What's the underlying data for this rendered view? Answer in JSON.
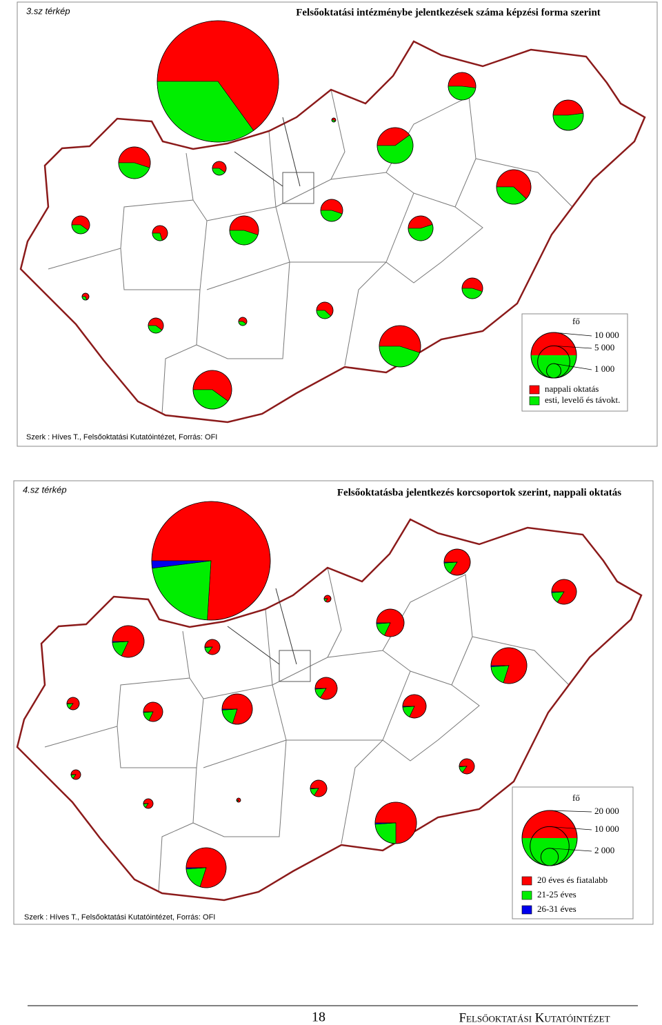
{
  "maps": [
    {
      "label": "3.sz térkép",
      "title": "Felsőoktatási intézménybe jelentkezések száma képzési forma szerint",
      "credit": "Szerk : Híves T., Felsőoktatási Kutatóintézet,  Forrás: OFI",
      "legend": {
        "unit": "fő",
        "sizes": [
          {
            "value": 10000,
            "label": "10 000"
          },
          {
            "value": 5000,
            "label": "5 000"
          },
          {
            "value": 1000,
            "label": "1 000"
          }
        ],
        "series": [
          {
            "name": "nappali oktatás",
            "color": "#ff0000"
          },
          {
            "name": "esti, levelő és távokt.",
            "color": "#00ee00"
          }
        ]
      },
      "pies": [
        {
          "total": 71100,
          "shares": [
            65,
            35
          ]
        },
        {
          "total": 4860,
          "shares": [
            55,
            45
          ]
        },
        {
          "total": 920,
          "shares": [
            60,
            40
          ]
        },
        {
          "total": 1550,
          "shares": [
            60,
            40
          ]
        },
        {
          "total": 1110,
          "shares": [
            70,
            30
          ]
        },
        {
          "total": 4050,
          "shares": [
            55,
            45
          ]
        },
        {
          "total": 230,
          "shares": [
            70,
            30
          ]
        },
        {
          "total": 1110,
          "shares": [
            60,
            40
          ]
        },
        {
          "total": 330,
          "shares": [
            60,
            40
          ]
        },
        {
          "total": 7200,
          "shares": [
            60,
            40
          ]
        },
        {
          "total": 80,
          "shares": [
            60,
            40
          ]
        },
        {
          "total": 6210,
          "shares": [
            40,
            60
          ]
        },
        {
          "total": 2350,
          "shares": [
            55,
            45
          ]
        },
        {
          "total": 2980,
          "shares": [
            45,
            55
          ]
        },
        {
          "total": 3670,
          "shares": [
            52,
            48
          ]
        },
        {
          "total": 4440,
          "shares": [
            48,
            52
          ]
        },
        {
          "total": 5740,
          "shares": [
            62,
            38
          ]
        },
        {
          "total": 2070,
          "shares": [
            55,
            45
          ]
        },
        {
          "total": 1320,
          "shares": [
            62,
            38
          ]
        },
        {
          "total": 8260,
          "shares": [
            55,
            45
          ]
        }
      ]
    },
    {
      "label": "4.sz térkép",
      "title": "Felsőoktatásba jelentkezés korcsoportok szerint, nappali oktatás",
      "credit": "Szerk : Híves T., Felsőoktatási Kutatóintézet,  Forrás: OFI",
      "legend": {
        "unit": "fő",
        "sizes": [
          {
            "value": 20000,
            "label": "20 000"
          },
          {
            "value": 10000,
            "label": "10 000"
          },
          {
            "value": 2000,
            "label": "2 000"
          }
        ],
        "series": [
          {
            "name": "20 éves és fiatalabb",
            "color": "#ff0000"
          },
          {
            "name": "21-25 éves",
            "color": "#00ee00"
          },
          {
            "name": "26-31 éves",
            "color": "#0000ee"
          }
        ]
      },
      "pies": [
        {
          "total": 92450,
          "shares": [
            76,
            22,
            2
          ]
        },
        {
          "total": 6610,
          "shares": [
            82,
            17,
            1
          ]
        },
        {
          "total": 1510,
          "shares": [
            85,
            14,
            1
          ]
        },
        {
          "total": 1010,
          "shares": [
            85,
            14,
            1
          ]
        },
        {
          "total": 2450,
          "shares": [
            82,
            17,
            1
          ]
        },
        {
          "total": 6050,
          "shares": [
            80,
            19,
            1
          ]
        },
        {
          "total": 610,
          "shares": [
            85,
            14,
            1
          ]
        },
        {
          "total": 610,
          "shares": [
            85,
            14,
            1
          ]
        },
        {
          "total": 110,
          "shares": [
            85,
            14,
            1
          ]
        },
        {
          "total": 10510,
          "shares": [
            80,
            19,
            1
          ]
        },
        {
          "total": 310,
          "shares": [
            85,
            14,
            1
          ]
        },
        {
          "total": 5000,
          "shares": [
            82,
            17,
            1
          ]
        },
        {
          "total": 3200,
          "shares": [
            84,
            15,
            1
          ]
        },
        {
          "total": 3610,
          "shares": [
            82,
            17,
            1
          ]
        },
        {
          "total": 4510,
          "shares": [
            84,
            15,
            1
          ]
        },
        {
          "total": 4050,
          "shares": [
            84,
            15,
            1
          ]
        },
        {
          "total": 8450,
          "shares": [
            80,
            19,
            1
          ]
        },
        {
          "total": 1510,
          "shares": [
            85,
            14,
            1
          ]
        },
        {
          "total": 1800,
          "shares": [
            84,
            15,
            1
          ]
        },
        {
          "total": 11250,
          "shares": [
            75,
            24,
            1
          ]
        }
      ]
    }
  ],
  "footer": {
    "page": "18",
    "text": "Felsőoktatási Kutatóintézet"
  }
}
